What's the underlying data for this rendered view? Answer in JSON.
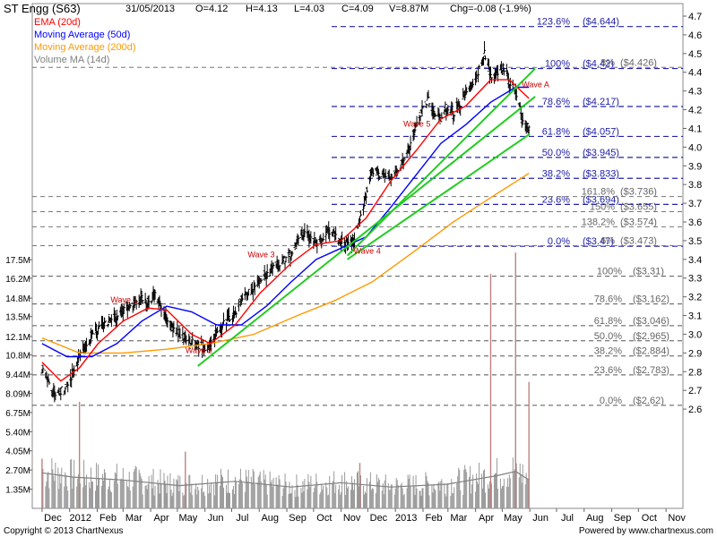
{
  "header": {
    "title": "ST Engg (S63)",
    "date": "31/05/2013",
    "open": "O=4.12",
    "high": "H=4.13",
    "low": "L=4.03",
    "close": "C=4.09",
    "volume": "V=8.87M",
    "change": "Chg=-0.08 (-1.9%)"
  },
  "footer": {
    "copyright": "Copyright © 2013 ChartNexus",
    "powered": "Powered by www.chartnexus.com"
  },
  "colors": {
    "price": "#000000",
    "ema20": "#ff0000",
    "ma50": "#0000ff",
    "ma200": "#ff9900",
    "volume_ma": "#808080",
    "trendline": "#22cc22",
    "fib": "#2222aa",
    "fib_lower": "#555555",
    "wave_label": "#cc0000"
  },
  "chart_data": {
    "type": "line",
    "legend": [
      {
        "name": "EMA (20d)",
        "color": "#ff0000"
      },
      {
        "name": "Moving Average (50d)",
        "color": "#0000ff"
      },
      {
        "name": "Moving Average (200d)",
        "color": "#ff9900"
      },
      {
        "name": "Volume MA (14d)",
        "color": "#808080"
      }
    ],
    "legend_position": "top-left",
    "x_ticks": [
      "Dec",
      "2012",
      "Feb",
      "Mar",
      "Apr",
      "May",
      "Jun",
      "Jul",
      "Aug",
      "Sep",
      "Oct",
      "Nov",
      "Dec",
      "2013",
      "Feb",
      "Mar",
      "Apr",
      "May",
      "Jun",
      "Jul",
      "Aug",
      "Sep",
      "Oct",
      "Nov"
    ],
    "x_range": [
      "2011-11-20",
      "2013-11-20"
    ],
    "price_ylim": [
      2.5,
      4.7
    ],
    "price_ticks": [
      2.6,
      2.7,
      2.8,
      2.9,
      3.0,
      3.1,
      3.2,
      3.3,
      3.4,
      3.5,
      3.6,
      3.7,
      3.8,
      3.9,
      4.0,
      4.1,
      4.2,
      4.3,
      4.4,
      4.5,
      4.6,
      4.7
    ],
    "volume_ticks": [
      "1.35M",
      "2.70M",
      "4.05M",
      "5.40M",
      "6.75M",
      "8.09M",
      "9.44M",
      "10.8M",
      "12.1M",
      "13.5M",
      "14.8M",
      "16.2M",
      "17.5M"
    ],
    "close": [
      {
        "date": "2011-12-01",
        "v": 2.82
      },
      {
        "date": "2011-12-08",
        "v": 2.74
      },
      {
        "date": "2011-12-15",
        "v": 2.67
      },
      {
        "date": "2011-12-22",
        "v": 2.7
      },
      {
        "date": "2011-12-29",
        "v": 2.72
      },
      {
        "date": "2012-01-05",
        "v": 2.8
      },
      {
        "date": "2012-01-12",
        "v": 2.88
      },
      {
        "date": "2012-01-19",
        "v": 2.94
      },
      {
        "date": "2012-01-26",
        "v": 2.99
      },
      {
        "date": "2012-02-02",
        "v": 3.02
      },
      {
        "date": "2012-02-09",
        "v": 3.06
      },
      {
        "date": "2012-02-16",
        "v": 3.07
      },
      {
        "date": "2012-02-23",
        "v": 3.1
      },
      {
        "date": "2012-03-01",
        "v": 3.12
      },
      {
        "date": "2012-03-08",
        "v": 3.15
      },
      {
        "date": "2012-03-15",
        "v": 3.17
      },
      {
        "date": "2012-03-22",
        "v": 3.19
      },
      {
        "date": "2012-03-29",
        "v": 3.16
      },
      {
        "date": "2012-04-05",
        "v": 3.22
      },
      {
        "date": "2012-04-12",
        "v": 3.15
      },
      {
        "date": "2012-04-19",
        "v": 3.08
      },
      {
        "date": "2012-04-26",
        "v": 3.04
      },
      {
        "date": "2012-05-03",
        "v": 3.0
      },
      {
        "date": "2012-05-10",
        "v": 2.98
      },
      {
        "date": "2012-05-17",
        "v": 2.96
      },
      {
        "date": "2012-05-24",
        "v": 2.94
      },
      {
        "date": "2012-05-31",
        "v": 2.92
      },
      {
        "date": "2012-06-07",
        "v": 2.95
      },
      {
        "date": "2012-06-14",
        "v": 3.0
      },
      {
        "date": "2012-06-21",
        "v": 3.05
      },
      {
        "date": "2012-06-28",
        "v": 3.08
      },
      {
        "date": "2012-07-05",
        "v": 3.12
      },
      {
        "date": "2012-07-12",
        "v": 3.18
      },
      {
        "date": "2012-07-19",
        "v": 3.22
      },
      {
        "date": "2012-07-26",
        "v": 3.25
      },
      {
        "date": "2012-08-02",
        "v": 3.28
      },
      {
        "date": "2012-08-09",
        "v": 3.32
      },
      {
        "date": "2012-08-16",
        "v": 3.36
      },
      {
        "date": "2012-08-23",
        "v": 3.38
      },
      {
        "date": "2012-08-30",
        "v": 3.4
      },
      {
        "date": "2012-09-06",
        "v": 3.42
      },
      {
        "date": "2012-09-13",
        "v": 3.5
      },
      {
        "date": "2012-09-20",
        "v": 3.55
      },
      {
        "date": "2012-09-27",
        "v": 3.52
      },
      {
        "date": "2012-10-04",
        "v": 3.48
      },
      {
        "date": "2012-10-11",
        "v": 3.5
      },
      {
        "date": "2012-10-18",
        "v": 3.55
      },
      {
        "date": "2012-10-25",
        "v": 3.52
      },
      {
        "date": "2012-11-01",
        "v": 3.5
      },
      {
        "date": "2012-11-08",
        "v": 3.48
      },
      {
        "date": "2012-11-15",
        "v": 3.5
      },
      {
        "date": "2012-11-22",
        "v": 3.6
      },
      {
        "date": "2012-11-29",
        "v": 3.75
      },
      {
        "date": "2012-12-06",
        "v": 3.88
      },
      {
        "date": "2012-12-13",
        "v": 3.86
      },
      {
        "date": "2012-12-20",
        "v": 3.84
      },
      {
        "date": "2012-12-27",
        "v": 3.84
      },
      {
        "date": "2013-01-03",
        "v": 3.86
      },
      {
        "date": "2013-01-10",
        "v": 3.92
      },
      {
        "date": "2013-01-17",
        "v": 4.0
      },
      {
        "date": "2013-01-24",
        "v": 4.1
      },
      {
        "date": "2013-01-31",
        "v": 4.2
      },
      {
        "date": "2013-02-07",
        "v": 4.25
      },
      {
        "date": "2013-02-14",
        "v": 4.18
      },
      {
        "date": "2013-02-21",
        "v": 4.15
      },
      {
        "date": "2013-02-28",
        "v": 4.2
      },
      {
        "date": "2013-03-07",
        "v": 4.18
      },
      {
        "date": "2013-03-14",
        "v": 4.22
      },
      {
        "date": "2013-03-21",
        "v": 4.28
      },
      {
        "date": "2013-03-28",
        "v": 4.32
      },
      {
        "date": "2013-04-04",
        "v": 4.4
      },
      {
        "date": "2013-04-11",
        "v": 4.5
      },
      {
        "date": "2013-04-18",
        "v": 4.38
      },
      {
        "date": "2013-04-25",
        "v": 4.4
      },
      {
        "date": "2013-05-02",
        "v": 4.42
      },
      {
        "date": "2013-05-09",
        "v": 4.35
      },
      {
        "date": "2013-05-16",
        "v": 4.3
      },
      {
        "date": "2013-05-23",
        "v": 4.15
      },
      {
        "date": "2013-05-31",
        "v": 4.09
      }
    ],
    "ema20": [
      {
        "date": "2011-12-01",
        "v": 2.85
      },
      {
        "date": "2011-12-22",
        "v": 2.75
      },
      {
        "date": "2012-01-12",
        "v": 2.82
      },
      {
        "date": "2012-02-02",
        "v": 2.95
      },
      {
        "date": "2012-03-01",
        "v": 3.07
      },
      {
        "date": "2012-03-29",
        "v": 3.14
      },
      {
        "date": "2012-04-19",
        "v": 3.13
      },
      {
        "date": "2012-05-17",
        "v": 3.0
      },
      {
        "date": "2012-06-07",
        "v": 2.95
      },
      {
        "date": "2012-07-05",
        "v": 3.05
      },
      {
        "date": "2012-08-02",
        "v": 3.22
      },
      {
        "date": "2012-09-06",
        "v": 3.38
      },
      {
        "date": "2012-10-04",
        "v": 3.48
      },
      {
        "date": "2012-11-01",
        "v": 3.5
      },
      {
        "date": "2012-11-29",
        "v": 3.62
      },
      {
        "date": "2012-12-27",
        "v": 3.82
      },
      {
        "date": "2013-01-24",
        "v": 3.98
      },
      {
        "date": "2013-02-21",
        "v": 4.15
      },
      {
        "date": "2013-03-21",
        "v": 4.22
      },
      {
        "date": "2013-04-18",
        "v": 4.36
      },
      {
        "date": "2013-05-09",
        "v": 4.36
      },
      {
        "date": "2013-05-31",
        "v": 4.26
      }
    ],
    "ma50": [
      {
        "date": "2011-12-01",
        "v": 2.95
      },
      {
        "date": "2011-12-29",
        "v": 2.88
      },
      {
        "date": "2012-01-26",
        "v": 2.88
      },
      {
        "date": "2012-02-23",
        "v": 2.95
      },
      {
        "date": "2012-03-22",
        "v": 3.07
      },
      {
        "date": "2012-04-19",
        "v": 3.15
      },
      {
        "date": "2012-05-17",
        "v": 3.12
      },
      {
        "date": "2012-06-14",
        "v": 3.05
      },
      {
        "date": "2012-07-12",
        "v": 3.05
      },
      {
        "date": "2012-08-09",
        "v": 3.15
      },
      {
        "date": "2012-09-06",
        "v": 3.28
      },
      {
        "date": "2012-10-04",
        "v": 3.4
      },
      {
        "date": "2012-11-01",
        "v": 3.46
      },
      {
        "date": "2012-11-29",
        "v": 3.52
      },
      {
        "date": "2012-12-27",
        "v": 3.68
      },
      {
        "date": "2013-01-24",
        "v": 3.85
      },
      {
        "date": "2013-02-21",
        "v": 4.02
      },
      {
        "date": "2013-03-21",
        "v": 4.12
      },
      {
        "date": "2013-04-18",
        "v": 4.24
      },
      {
        "date": "2013-05-16",
        "v": 4.32
      },
      {
        "date": "2013-05-31",
        "v": 4.32
      }
    ],
    "ma200": [
      {
        "date": "2011-12-01",
        "v": 2.98
      },
      {
        "date": "2012-01-12",
        "v": 2.9
      },
      {
        "date": "2012-03-01",
        "v": 2.9
      },
      {
        "date": "2012-04-19",
        "v": 2.92
      },
      {
        "date": "2012-06-07",
        "v": 2.95
      },
      {
        "date": "2012-07-26",
        "v": 3.0
      },
      {
        "date": "2012-09-13",
        "v": 3.1
      },
      {
        "date": "2012-10-25",
        "v": 3.18
      },
      {
        "date": "2012-12-06",
        "v": 3.28
      },
      {
        "date": "2013-01-24",
        "v": 3.45
      },
      {
        "date": "2013-03-07",
        "v": 3.6
      },
      {
        "date": "2013-04-18",
        "v": 3.73
      },
      {
        "date": "2013-05-31",
        "v": 3.86
      }
    ],
    "volume_ma": [
      {
        "date": "2011-12-01",
        "v": 2.5
      },
      {
        "date": "2012-01-05",
        "v": 2.2
      },
      {
        "date": "2012-03-01",
        "v": 2.0
      },
      {
        "date": "2012-05-03",
        "v": 1.6
      },
      {
        "date": "2012-07-05",
        "v": 1.9
      },
      {
        "date": "2012-09-06",
        "v": 1.5
      },
      {
        "date": "2012-11-01",
        "v": 1.8
      },
      {
        "date": "2012-12-27",
        "v": 1.5
      },
      {
        "date": "2013-02-28",
        "v": 1.7
      },
      {
        "date": "2013-04-25",
        "v": 2.3
      },
      {
        "date": "2013-05-16",
        "v": 2.6
      },
      {
        "date": "2013-05-31",
        "v": 2.0
      }
    ],
    "volume_spikes": [
      {
        "date": "2011-12-01",
        "v": 3.5
      },
      {
        "date": "2012-01-12",
        "v": 7.5
      },
      {
        "date": "2012-05-10",
        "v": 4.0
      },
      {
        "date": "2012-11-22",
        "v": 3.2
      },
      {
        "date": "2013-04-18",
        "v": 16.5
      },
      {
        "date": "2013-05-16",
        "v": 18.0
      },
      {
        "date": "2013-05-31",
        "v": 8.9
      }
    ],
    "trendlines": [
      {
        "from": {
          "date": "2012-05-24",
          "v": 2.83
        },
        "to": {
          "date": "2013-06-07",
          "v": 4.27
        }
      },
      {
        "from": {
          "date": "2012-11-08",
          "v": 3.42
        },
        "to": {
          "date": "2013-06-07",
          "v": 4.42
        }
      },
      {
        "from": {
          "date": "2012-11-08",
          "v": 3.4
        },
        "to": {
          "date": "2013-06-01",
          "v": 4.07
        }
      }
    ],
    "fib_upper": [
      {
        "label": "123.6%",
        "value_label": "($4.644)",
        "v": 4.644
      },
      {
        "label": "100%",
        "value_label": "($4.42)",
        "v": 4.42
      },
      {
        "label": "78.6%",
        "value_label": "($4.217)",
        "v": 4.217
      },
      {
        "label": "61.8%",
        "value_label": "($4.057)",
        "v": 4.057
      },
      {
        "label": "50.0%",
        "value_label": "($3.945)",
        "v": 3.945
      },
      {
        "label": "38.2%",
        "value_label": "($3.833)",
        "v": 3.833
      },
      {
        "label": "23.6%",
        "value_label": "($3.694)",
        "v": 3.694
      },
      {
        "label": "0.0%",
        "value_label": "($3.47)",
        "v": 3.47
      }
    ],
    "fib_middle": [
      {
        "label": "8%",
        "value_label": "($4.426)",
        "v": 4.426
      },
      {
        "label": "161.8%",
        "value_label": "($3.736)",
        "v": 3.736
      },
      {
        "label": "150%",
        "value_label": "($3.655)",
        "v": 3.655
      },
      {
        "label": "138.2%",
        "value_label": "($3.574)",
        "v": 3.574
      },
      {
        "label": "6%",
        "value_label": "($3.473)",
        "v": 3.473
      }
    ],
    "fib_lower": [
      {
        "label": "100%",
        "value_label": "($3.31)",
        "v": 3.31
      },
      {
        "label": "78.6%",
        "value_label": "($3.162)",
        "v": 3.162
      },
      {
        "label": "61.8%",
        "value_label": "($3.046)",
        "v": 3.046
      },
      {
        "label": "50.0%",
        "value_label": "($2.965)",
        "v": 2.965
      },
      {
        "label": "38.2%",
        "value_label": "($2.884)",
        "v": 2.884
      },
      {
        "label": "23.6%",
        "value_label": "($2.783)",
        "v": 2.783
      },
      {
        "label": "0.0%",
        "value_label": "($2.62)",
        "v": 2.62
      }
    ],
    "annotations": [
      {
        "text": "Wave 1",
        "date": "2012-02-16",
        "v": 3.17
      },
      {
        "text": "Wave 2",
        "date": "2012-05-10",
        "v": 2.9
      },
      {
        "text": "Wave 3",
        "date": "2012-07-19",
        "v": 3.41
      },
      {
        "text": "Wave 4",
        "date": "2012-11-15",
        "v": 3.43
      },
      {
        "text": "Wave 5",
        "date": "2013-01-10",
        "v": 4.11
      },
      {
        "text": "Wave A",
        "date": "2013-05-23",
        "v": 4.32
      }
    ]
  }
}
